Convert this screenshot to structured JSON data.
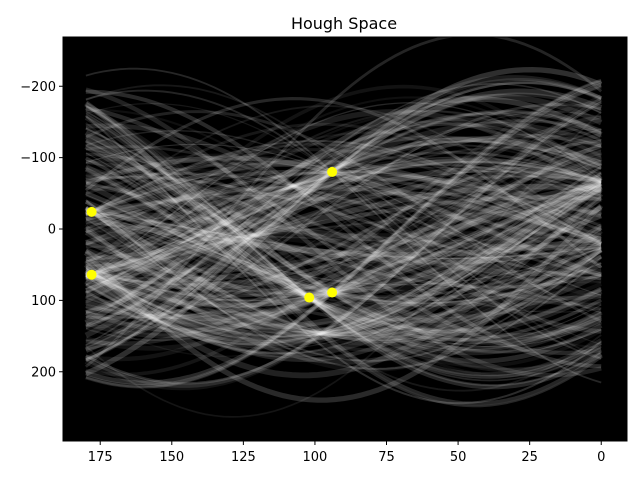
{
  "chart_data": {
    "type": "heatmap",
    "title": "Hough Space",
    "xlabel": "",
    "ylabel": "",
    "xlim": [
      188,
      -9
    ],
    "ylim": [
      -269,
      297
    ],
    "xticks": [
      175,
      150,
      125,
      100,
      75,
      50,
      25,
      0
    ],
    "yticks": [
      -200,
      -100,
      0,
      100,
      200
    ],
    "xtick_labels": [
      "175",
      "150",
      "125",
      "100",
      "75",
      "50",
      "25",
      "0"
    ],
    "ytick_labels": [
      "−200",
      "−100",
      "0",
      "100",
      "200"
    ],
    "background_color": "#000000",
    "curve_color": "#ffffff",
    "marker_color": "#ffff00",
    "peaks": [
      {
        "theta": 178,
        "rho": -24
      },
      {
        "theta": 178,
        "rho": 64
      },
      {
        "theta": 94,
        "rho": -80
      },
      {
        "theta": 102,
        "rho": 96
      },
      {
        "theta": 94,
        "rho": 89
      }
    ]
  }
}
